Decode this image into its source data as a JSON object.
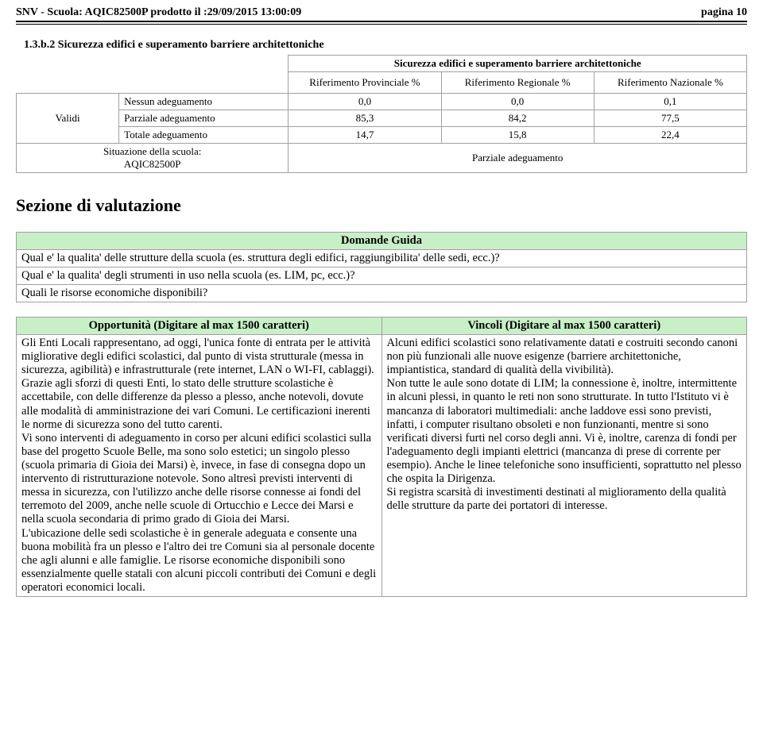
{
  "colors": {
    "header_bg": "#c7f0c7",
    "border": "#a0a0a0"
  },
  "header": {
    "left": "SNV - Scuola: AQIC82500P prodotto il :29/09/2015 13:00:09",
    "right": "pagina 10"
  },
  "section": {
    "number": "1.3.b.2 Sicurezza edifici e superamento barriere architettoniche"
  },
  "table": {
    "title": "Sicurezza edifici e superamento barriere architettoniche",
    "col1": "Riferimento Provinciale %",
    "col2": "Riferimento Regionale %",
    "col3": "Riferimento Nazionale %",
    "validi_label": "Validi",
    "rows": [
      {
        "metric": "Nessun adeguamento",
        "v1": "0,0",
        "v2": "0,0",
        "v3": "0,1"
      },
      {
        "metric": "Parziale adeguamento",
        "v1": "85,3",
        "v2": "84,2",
        "v3": "77,5"
      },
      {
        "metric": "Totale adeguamento",
        "v1": "14,7",
        "v2": "15,8",
        "v3": "22,4"
      }
    ],
    "situazione_label1": "Situazione della scuola:",
    "situazione_label2": "AQIC82500P",
    "situazione_value": "Parziale adeguamento"
  },
  "valutazione": {
    "heading": "Sezione di valutazione",
    "domande_title": "Domande Guida",
    "q1": "Qual e' la qualita' delle strutture della scuola (es. struttura degli edifici, raggiungibilita' delle sedi, ecc.)?",
    "q2": "Qual e' la qualita' degli strumenti in uso nella scuola (es. LIM, pc, ecc.)?",
    "q3": "Quali le risorse economiche disponibili?"
  },
  "two_col": {
    "left_title": "Opportunità (Digitare al max 1500 caratteri)",
    "right_title": "Vincoli (Digitare al max 1500 caratteri)",
    "left_text": "Gli Enti Locali rappresentano, ad oggi, l'unica fonte di entrata per le attività migliorative degli edifici scolastici, dal punto di vista strutturale (messa in sicurezza, agibilità) e infrastrutturale (rete internet, LAN o WI-FI, cablaggi).\nGrazie agli sforzi di questi Enti, lo stato delle strutture scolastiche è accettabile, con delle differenze da plesso a plesso, anche notevoli, dovute alle modalità di amministrazione dei vari Comuni.  Le certificazioni inerenti le norme di sicurezza sono del tutto carenti.\nVi sono interventi di adeguamento in corso per alcuni edifici scolastici sulla base del progetto Scuole Belle, ma sono solo estetici; un singolo plesso (scuola primaria di Gioia dei Marsi) è, invece, in fase di consegna dopo un intervento di ristrutturazione notevole. Sono altresì previsti interventi di messa in sicurezza, con l'utilizzo anche delle risorse connesse ai fondi del terremoto del 2009, anche nelle scuole di Ortucchio e Lecce dei Marsi e nella scuola secondaria di primo grado di Gioia dei Marsi.\nL'ubicazione delle sedi scolastiche è in generale adeguata e consente una buona mobilità fra un plesso e l'altro dei tre Comuni sia al personale docente che agli alunni e alle famiglie. Le risorse economiche disponibili sono essenzialmente quelle statali con alcuni piccoli contributi dei Comuni e degli operatori economici locali.",
    "right_text": "Alcuni edifici scolastici sono relativamente datati e costruiti secondo canoni non più funzionali alle nuove esigenze (barriere architettoniche, impiantistica, standard di qualità della vivibilità).\nNon tutte le aule sono dotate di LIM; la connessione è, inoltre, intermittente in alcuni plessi, in quanto le reti non sono strutturate. In tutto l'Istituto vi è mancanza di laboratori multimediali: anche laddove essi sono previsti, infatti, i computer risultano obsoleti e non funzionanti, mentre si sono verificati diversi furti nel corso degli anni. Vi è, inoltre, carenza di fondi per l'adeguamento degli impianti elettrici (mancanza di prese di corrente per esempio). Anche le linee telefoniche sono insufficienti, soprattutto nel plesso che ospita la Dirigenza.\nSi registra scarsità di investimenti destinati al miglioramento della qualità delle strutture da parte dei portatori di interesse."
  }
}
